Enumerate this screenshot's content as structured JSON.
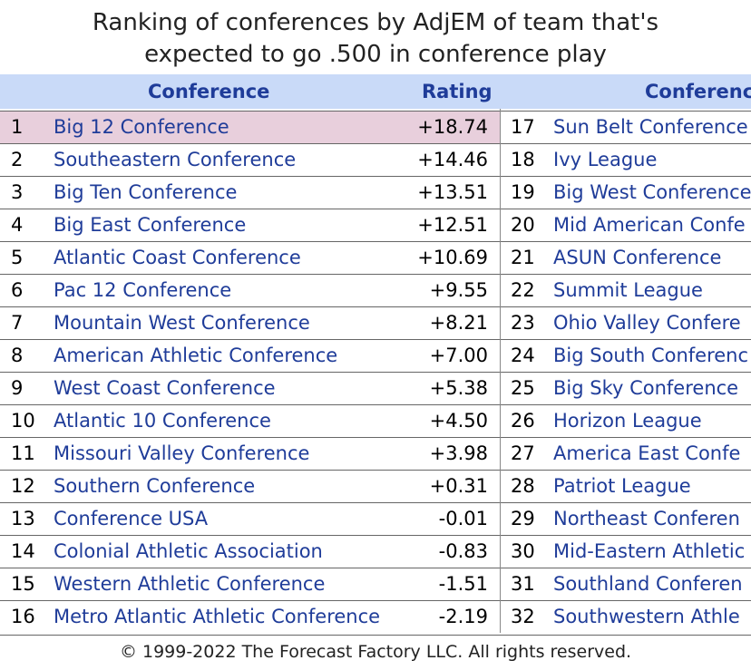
{
  "title": [
    "Ranking of conferences by AdjEM of team that's",
    "expected to go .500 in conference play"
  ],
  "table": {
    "header": [
      "Conference",
      "Rating",
      "Conferenc"
    ],
    "rows": [
      [
        1,
        "Big 12 Conference",
        "+18.74",
        17,
        "Sun Belt Conference"
      ],
      [
        2,
        "Southeastern Conference",
        "+14.46",
        18,
        "Ivy League"
      ],
      [
        3,
        "Big Ten Conference",
        "+13.51",
        19,
        "Big West Conference"
      ],
      [
        4,
        "Big East Conference",
        "+12.51",
        20,
        "Mid American Confe"
      ],
      [
        5,
        "Atlantic Coast Conference",
        "+10.69",
        21,
        "ASUN Conference"
      ],
      [
        6,
        "Pac 12 Conference",
        "+9.55",
        22,
        "Summit League"
      ],
      [
        7,
        "Mountain West Conference",
        "+8.21",
        23,
        "Ohio Valley Confere"
      ],
      [
        8,
        "American Athletic Conference",
        "+7.00",
        24,
        "Big South Conferenc"
      ],
      [
        9,
        "West Coast Conference",
        "+5.38",
        25,
        "Big Sky Conference"
      ],
      [
        10,
        "Atlantic 10 Conference",
        "+4.50",
        26,
        "Horizon League"
      ],
      [
        11,
        "Missouri Valley Conference",
        "+3.98",
        27,
        "America East Confe"
      ],
      [
        12,
        "Southern Conference",
        "+0.31",
        28,
        "Patriot League"
      ],
      [
        13,
        "Conference USA",
        "-0.01",
        29,
        "Northeast Conferen"
      ],
      [
        14,
        "Colonial Athletic Association",
        "-0.83",
        30,
        "Mid-Eastern Athletic"
      ],
      [
        15,
        "Western Athletic Conference",
        "-1.51",
        31,
        "Southland Conferen"
      ],
      [
        16,
        "Metro Atlantic Athletic Conference",
        "-2.19",
        32,
        "Southwestern Athle"
      ]
    ]
  },
  "footer": "© 1999-2022 The Forecast Factory LLC. All rights reserved."
}
